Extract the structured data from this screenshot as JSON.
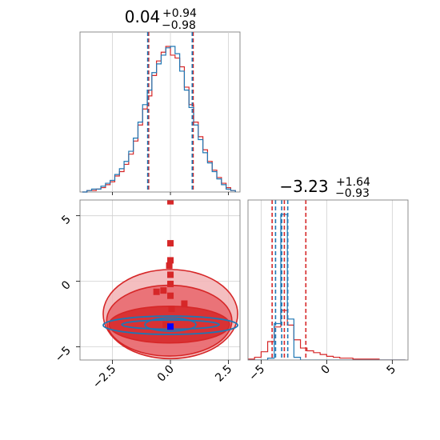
{
  "chart_data": {
    "type": "corner",
    "parameters": [
      {
        "title_median": "0.04",
        "title_plus": "+0.94",
        "title_minus": "−0.98",
        "range": [
          -3.9,
          3.0
        ],
        "ticks": [
          -2.5,
          0.0,
          2.5
        ],
        "tick_labels": [
          "−2.5",
          "0.0",
          "2.5"
        ]
      },
      {
        "title_median": "−3.23",
        "title_plus": "+1.64",
        "title_minus": "−0.93",
        "range": [
          -6.0,
          6.2
        ],
        "ticks": [
          -5,
          0,
          5
        ],
        "tick_labels": [
          "−5",
          "0",
          "5"
        ]
      }
    ],
    "series": [
      {
        "color": "#d62728",
        "hist1_bins": [
          -3.8,
          -3.6,
          -3.4,
          -3.2,
          -3.0,
          -2.8,
          -2.6,
          -2.4,
          -2.2,
          -2.0,
          -1.8,
          -1.6,
          -1.4,
          -1.2,
          -1.0,
          -0.8,
          -0.6,
          -0.4,
          -0.2,
          0.0,
          0.2,
          0.4,
          0.6,
          0.8,
          1.0,
          1.2,
          1.4,
          1.6,
          1.8,
          2.0,
          2.2,
          2.4,
          2.6,
          2.8
        ],
        "hist1_counts": [
          0,
          1,
          1,
          2,
          3,
          5,
          7,
          11,
          14,
          19,
          26,
          35,
          46,
          57,
          66,
          80,
          90,
          96,
          100,
          94,
          92,
          86,
          72,
          60,
          48,
          38,
          29,
          21,
          15,
          10,
          6,
          3,
          1
        ],
        "hist2_bins": [
          -6.0,
          -5.5,
          -5.0,
          -4.5,
          -4.0,
          -3.5,
          -3.0,
          -2.5,
          -2.0,
          -1.5,
          -1.0,
          -0.5,
          0.0,
          0.5,
          1.0,
          1.5,
          2.0,
          2.5,
          3.0,
          3.5,
          4.0,
          4.5,
          5.0,
          5.5,
          6.0
        ],
        "hist2_counts": [
          1,
          3,
          9,
          20,
          36,
          54,
          38,
          22,
          13,
          10,
          8,
          6,
          4,
          3,
          2,
          2,
          1,
          1,
          1,
          1,
          0,
          0,
          0,
          0
        ],
        "quantiles1": [
          -0.94,
          0.04,
          0.98
        ],
        "quantiles2": [
          -4.16,
          -3.23,
          -1.59
        ],
        "ellipses": [
          {
            "cx": -0.05,
            "cy": -3.3,
            "rx": 2.6,
            "ry": 1.4,
            "level": 0.393
          },
          {
            "cx": -0.05,
            "cy": -3.0,
            "rx": 2.7,
            "ry": 2.7,
            "level": 0.865
          },
          {
            "cx": 0.0,
            "cy": -2.5,
            "rx": 2.9,
            "ry": 3.4,
            "level": 0.989
          }
        ],
        "points": [
          [
            0.0,
            6.1
          ],
          [
            0.0,
            2.9
          ],
          [
            0.0,
            1.6
          ],
          [
            -0.05,
            1.2
          ],
          [
            0.0,
            0.5
          ],
          [
            0.0,
            -0.2
          ],
          [
            -0.3,
            -0.7
          ],
          [
            0.0,
            -1.1
          ],
          [
            0.05,
            -2.1
          ],
          [
            -0.6,
            -0.8
          ],
          [
            0.6,
            -1.7
          ],
          [
            -0.2,
            -3.3
          ]
        ]
      },
      {
        "color": "#1f77b4",
        "hist1_bins": [
          -3.8,
          -3.6,
          -3.4,
          -3.2,
          -3.0,
          -2.8,
          -2.6,
          -2.4,
          -2.2,
          -2.0,
          -1.8,
          -1.6,
          -1.4,
          -1.2,
          -1.0,
          -0.8,
          -0.6,
          -0.4,
          -0.2,
          0.0,
          0.2,
          0.4,
          0.6,
          0.8,
          1.0,
          1.2,
          1.4,
          1.6,
          1.8,
          2.0,
          2.2,
          2.4,
          2.6,
          2.8
        ],
        "hist1_counts": [
          0,
          1,
          2,
          2,
          4,
          6,
          8,
          12,
          16,
          21,
          28,
          37,
          48,
          60,
          70,
          82,
          88,
          94,
          99,
          100,
          95,
          83,
          70,
          58,
          46,
          36,
          27,
          20,
          14,
          9,
          5,
          2,
          1
        ],
        "hist2_bins": [
          -6.0,
          -5.5,
          -5.0,
          -4.5,
          -4.0,
          -3.5,
          -3.0,
          -2.5,
          -2.0,
          -1.5,
          -1.0,
          -0.5,
          0.0,
          0.5,
          1.0,
          1.5,
          2.0,
          2.5,
          3.0,
          3.5,
          4.0,
          4.5,
          5.0,
          5.5,
          6.0
        ],
        "hist2_counts": [
          0,
          0,
          0,
          2,
          40,
          160,
          45,
          3,
          0,
          0,
          0,
          0,
          0,
          0,
          0,
          0,
          0,
          0,
          0,
          0,
          0,
          0,
          0,
          0
        ],
        "quantiles1": [
          -0.98,
          0.04,
          0.94
        ],
        "quantiles2": [
          -3.9,
          -3.43,
          -2.97
        ],
        "ellipses": [
          {
            "cx": 0.0,
            "cy": -3.3,
            "rx": 2.1,
            "ry": 0.35,
            "level": 0.393
          },
          {
            "cx": 0.0,
            "cy": -3.35,
            "rx": 2.9,
            "ry": 0.7,
            "level": 0.865
          },
          {
            "cx": 0.0,
            "cy": -3.3,
            "rx": 1.1,
            "ry": 0.5,
            "level": 0.2
          }
        ],
        "points": [
          [
            0.0,
            -3.45
          ]
        ]
      }
    ]
  }
}
